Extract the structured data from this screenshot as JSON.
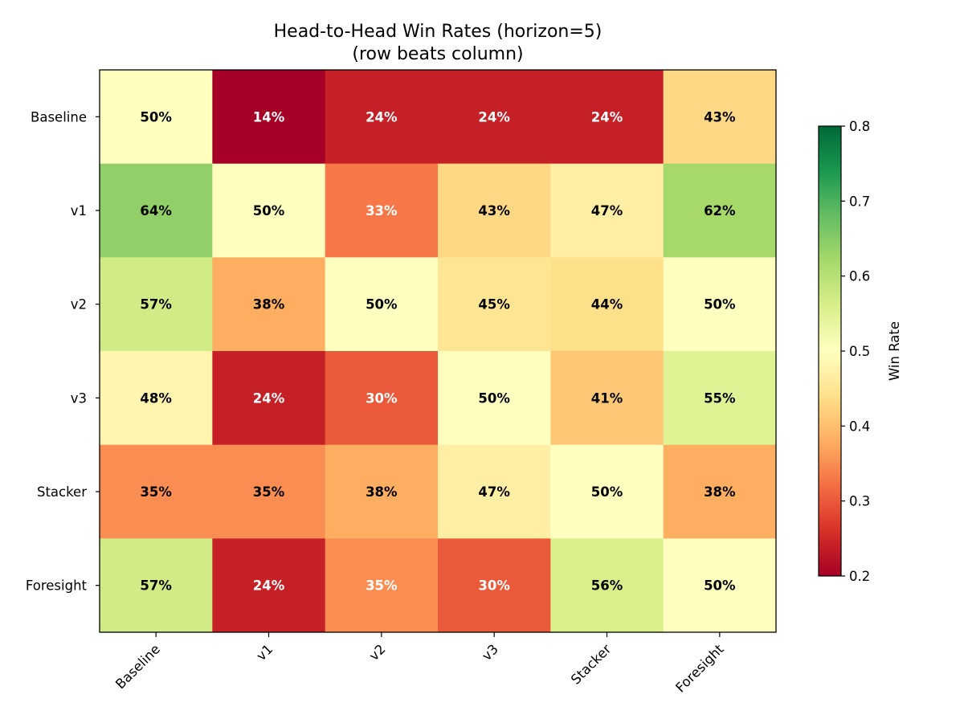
{
  "chart_data": {
    "type": "heatmap",
    "title": "Head-to-Head Win Rates (horizon=5)",
    "subtitle": "(row beats column)",
    "rows": [
      "Baseline",
      "v1",
      "v2",
      "v3",
      "Stacker",
      "Foresight"
    ],
    "columns": [
      "Baseline",
      "v1",
      "v2",
      "v3",
      "Stacker",
      "Foresight"
    ],
    "values": [
      [
        0.5,
        0.14,
        0.24,
        0.24,
        0.24,
        0.43
      ],
      [
        0.64,
        0.5,
        0.33,
        0.43,
        0.47,
        0.62
      ],
      [
        0.57,
        0.38,
        0.5,
        0.45,
        0.44,
        0.5
      ],
      [
        0.48,
        0.24,
        0.3,
        0.5,
        0.41,
        0.55
      ],
      [
        0.35,
        0.35,
        0.38,
        0.47,
        0.5,
        0.38
      ],
      [
        0.57,
        0.24,
        0.35,
        0.3,
        0.56,
        0.5
      ]
    ],
    "labels": [
      [
        "50%",
        "14%",
        "24%",
        "24%",
        "24%",
        "43%"
      ],
      [
        "64%",
        "50%",
        "33%",
        "43%",
        "47%",
        "62%"
      ],
      [
        "57%",
        "38%",
        "50%",
        "45%",
        "44%",
        "50%"
      ],
      [
        "48%",
        "24%",
        "30%",
        "50%",
        "41%",
        "55%"
      ],
      [
        "35%",
        "35%",
        "38%",
        "47%",
        "50%",
        "38%"
      ],
      [
        "57%",
        "24%",
        "35%",
        "30%",
        "56%",
        "50%"
      ]
    ],
    "label_white": [
      [
        false,
        true,
        true,
        true,
        true,
        false
      ],
      [
        false,
        false,
        true,
        false,
        false,
        false
      ],
      [
        false,
        false,
        false,
        false,
        false,
        false
      ],
      [
        false,
        true,
        true,
        false,
        false,
        false
      ],
      [
        false,
        false,
        false,
        false,
        false,
        false
      ],
      [
        false,
        true,
        true,
        true,
        false,
        false
      ]
    ],
    "colormap": "RdYlGn",
    "vmin": 0.2,
    "vmax": 0.8,
    "colorbar": {
      "label": "Win Rate",
      "ticks": [
        "0.2",
        "0.3",
        "0.4",
        "0.5",
        "0.6",
        "0.7",
        "0.8"
      ]
    }
  }
}
